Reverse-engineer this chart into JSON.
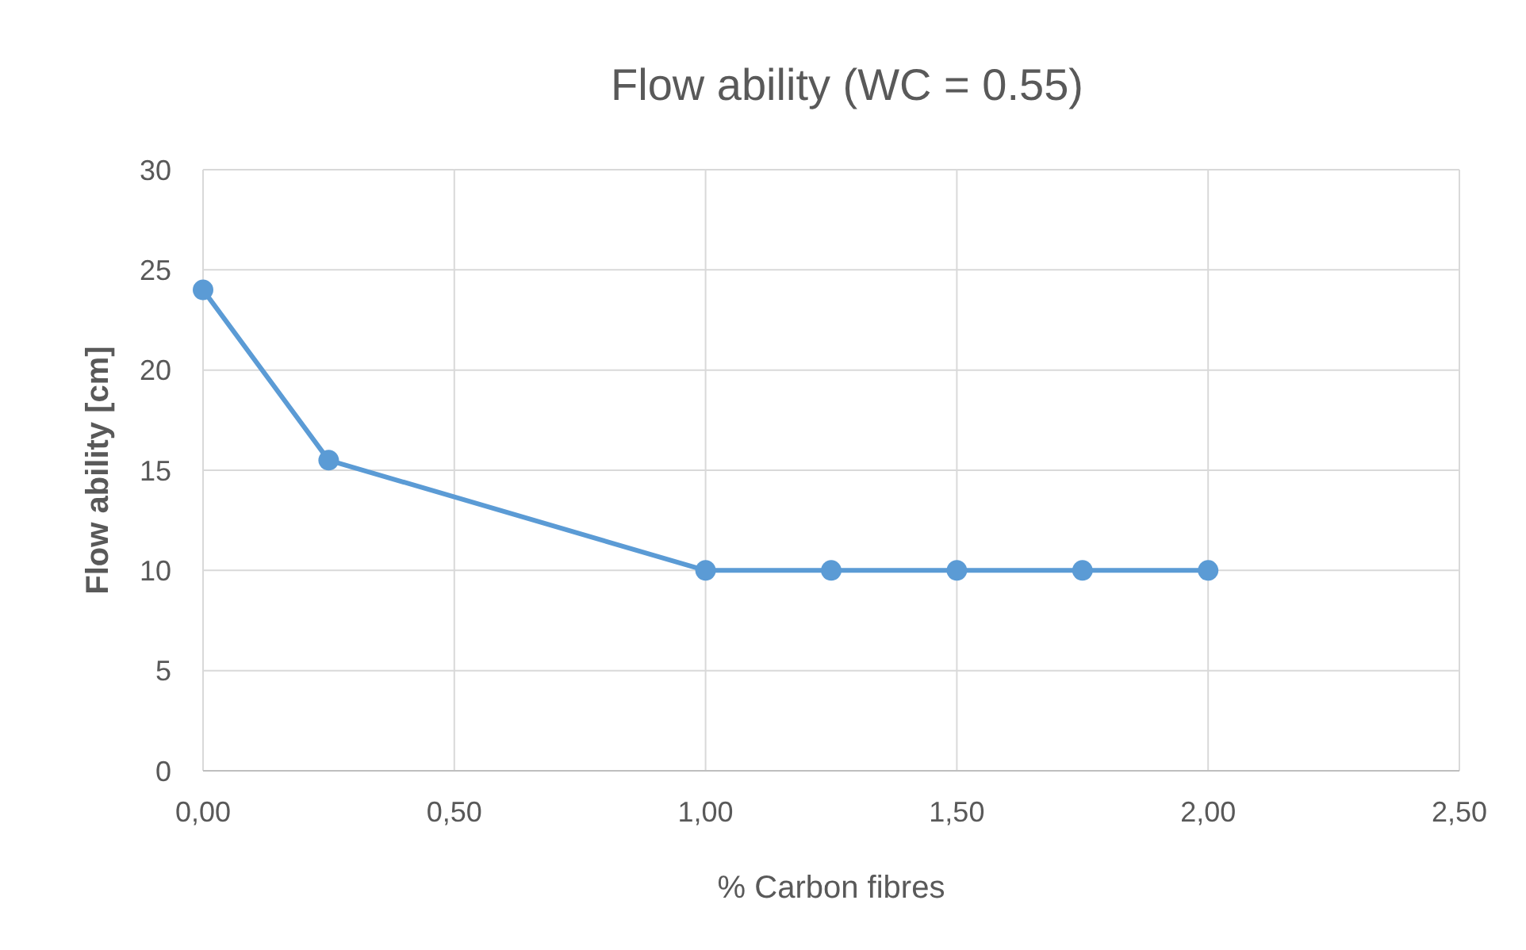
{
  "chart_data": {
    "type": "line",
    "title": "Flow ability (WC = 0.55)",
    "xlabel": "% Carbon fibres",
    "ylabel": "Flow ability [cm]",
    "x": [
      0,
      0.25,
      1,
      1.25,
      1.5,
      1.75,
      2
    ],
    "series": [
      {
        "color": "#5b9bd5",
        "values": [
          24,
          15.5,
          10,
          10,
          10,
          10,
          10
        ]
      }
    ],
    "xlim": [
      0,
      2.5
    ],
    "xticks": [
      {
        "value": 0,
        "label": "0,00"
      },
      {
        "value": 0.5,
        "label": "0,50"
      },
      {
        "value": 1,
        "label": "1,00"
      },
      {
        "value": 1.5,
        "label": "1,50"
      },
      {
        "value": 2,
        "label": "2,00"
      },
      {
        "value": 2.5,
        "label": "2,50"
      }
    ],
    "ylim": [
      0,
      30
    ],
    "yticks": [
      0,
      5,
      10,
      15,
      20,
      25,
      30
    ],
    "grid": true,
    "marker": "circle",
    "line_style": "solid"
  }
}
